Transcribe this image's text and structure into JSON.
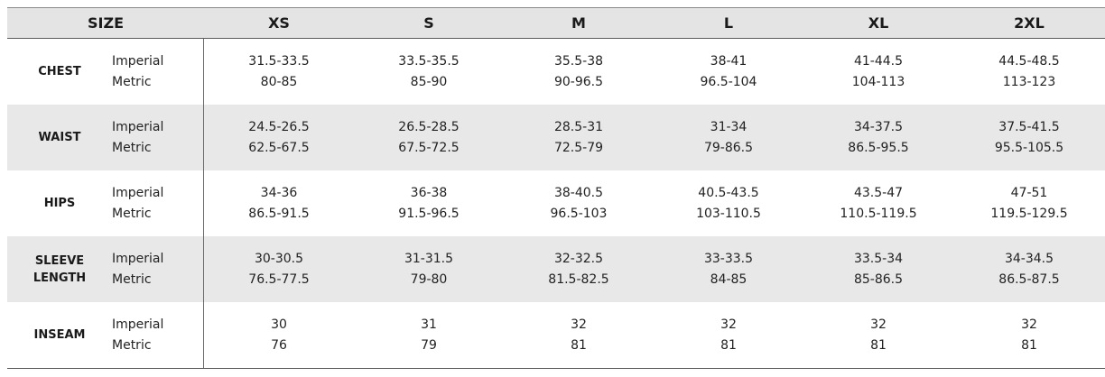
{
  "table": {
    "size_header": "SIZE",
    "sizes": [
      "XS",
      "S",
      "M",
      "L",
      "XL",
      "2XL"
    ],
    "rows": [
      {
        "label": "CHEST",
        "imperial_label": "Imperial",
        "metric_label": "Metric",
        "imperial": [
          "31.5-33.5",
          "33.5-35.5",
          "35.5-38",
          "38-41",
          "41-44.5",
          "44.5-48.5"
        ],
        "metric": [
          "80-85",
          "85-90",
          "90-96.5",
          "96.5-104",
          "104-113",
          "113-123"
        ]
      },
      {
        "label": "WAIST",
        "imperial_label": "Imperial",
        "metric_label": "Metric",
        "imperial": [
          "24.5-26.5",
          "26.5-28.5",
          "28.5-31",
          "31-34",
          "34-37.5",
          "37.5-41.5"
        ],
        "metric": [
          "62.5-67.5",
          "67.5-72.5",
          "72.5-79",
          "79-86.5",
          "86.5-95.5",
          "95.5-105.5"
        ]
      },
      {
        "label": "HIPS",
        "imperial_label": "Imperial",
        "metric_label": "Metric",
        "imperial": [
          "34-36",
          "36-38",
          "38-40.5",
          "40.5-43.5",
          "43.5-47",
          "47-51"
        ],
        "metric": [
          "86.5-91.5",
          "91.5-96.5",
          "96.5-103",
          "103-110.5",
          "110.5-119.5",
          "119.5-129.5"
        ]
      },
      {
        "label": "SLEEVE LENGTH",
        "label_line1": "SLEEVE",
        "label_line2": "LENGTH",
        "imperial_label": "Imperial",
        "metric_label": "Metric",
        "imperial": [
          "30-30.5",
          "31-31.5",
          "32-32.5",
          "33-33.5",
          "33.5-34",
          "34-34.5"
        ],
        "metric": [
          "76.5-77.5",
          "79-80",
          "81.5-82.5",
          "84-85",
          "85-86.5",
          "86.5-87.5"
        ]
      },
      {
        "label": "INSEAM",
        "imperial_label": "Imperial",
        "metric_label": "Metric",
        "imperial": [
          "30",
          "31",
          "32",
          "32",
          "32",
          "32"
        ],
        "metric": [
          "76",
          "79",
          "81",
          "81",
          "81",
          "81"
        ]
      }
    ]
  }
}
